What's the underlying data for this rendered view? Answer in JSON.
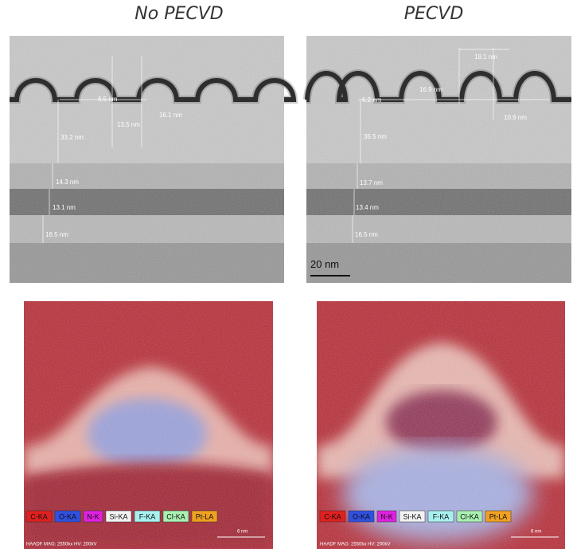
{
  "panels": [
    {
      "title": "No PECVD",
      "tem": {
        "labels": [
          "6.5 nm",
          "16.1 nm",
          "13.5 nm",
          "33.2 nm",
          "14.3 nm",
          "13.1 nm",
          "16.5 nm"
        ]
      },
      "eds": {
        "legend": [
          "C-KA",
          "O-KA",
          "N-K",
          "Si-KA",
          "F-KA",
          "Cl-KA",
          "Pt-LA"
        ],
        "footer": "HAADF  MAG: 2550kx  HV: 200kV",
        "scale": "6 nm"
      }
    },
    {
      "title": "PECVD",
      "tem": {
        "labels": [
          "19.1 nm",
          "16.9 nm",
          "6.2 nm",
          "10.9 nm",
          "35.5 nm",
          "13.7 nm",
          "13.4 nm",
          "16.5 nm"
        ],
        "scale_bar": "20 nm"
      },
      "eds": {
        "legend": [
          "C-KA",
          "O-KA",
          "N-K",
          "Si-KA",
          "F-KA",
          "Cl-KA",
          "Pt-LA"
        ],
        "footer": "HAADF  MAG: 2550kx  HV: 200kV",
        "scale": "6 nm"
      }
    }
  ]
}
